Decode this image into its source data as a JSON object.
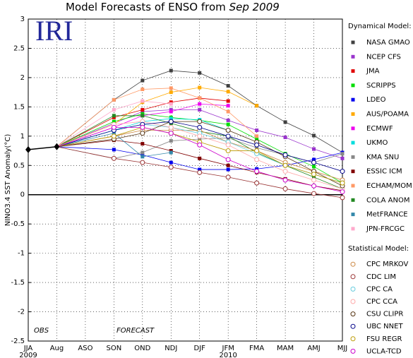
{
  "chart_data": {
    "type": "line",
    "title": "Model Forecasts of ENSO from",
    "title_date": "Sep 2009",
    "logo": "IRI",
    "ylabel": "NINO3.4 SST Anomaly(°C)",
    "annotations": [
      "OBS",
      "FORECAST"
    ],
    "categories": [
      "JJA",
      "Aug",
      "ASO",
      "SON",
      "OND",
      "NDJ",
      "DJF",
      "JFM",
      "FMA",
      "MAM",
      "AMJ",
      "MJJ"
    ],
    "x_sublabels": [
      "2009",
      null,
      null,
      null,
      null,
      null,
      null,
      "2010",
      null,
      null,
      null,
      null
    ],
    "ylim": [
      -2.5,
      3
    ],
    "yticks": [
      -2.5,
      -2,
      -1.5,
      -1,
      -0.5,
      0,
      0.5,
      1,
      1.5,
      2,
      2.5,
      3
    ],
    "grid": true,
    "observed": {
      "color": "#000000",
      "values": [
        0.77,
        0.82,
        null,
        null,
        null,
        null,
        null,
        null,
        null,
        null,
        null,
        null
      ]
    },
    "series_groups": [
      {
        "label": "Dynamical Model:",
        "marker": "square",
        "series": [
          {
            "name": "NASA GMAO",
            "color": "#404040",
            "values": [
              null,
              0.82,
              null,
              1.62,
              1.95,
              2.12,
              2.08,
              1.86,
              1.52,
              1.24,
              1.01,
              0.72
            ]
          },
          {
            "name": "NCEP CFS",
            "color": "#9933cc",
            "values": [
              null,
              0.82,
              null,
              1.22,
              1.42,
              1.45,
              1.45,
              1.27,
              1.1,
              0.98,
              0.78,
              0.62
            ]
          },
          {
            "name": "JMA",
            "color": "#e00000",
            "values": [
              null,
              0.82,
              null,
              1.32,
              1.45,
              1.58,
              1.65,
              1.6,
              null,
              null,
              null,
              null
            ]
          },
          {
            "name": "SCRIPPS",
            "color": "#00dd00",
            "values": [
              null,
              0.82,
              null,
              1.25,
              1.38,
              1.32,
              1.27,
              1.2,
              0.95,
              0.7,
              0.48,
              0.2
            ]
          },
          {
            "name": "LDEO",
            "color": "#0000ee",
            "values": [
              null,
              0.82,
              null,
              0.77,
              0.68,
              0.55,
              0.43,
              0.43,
              0.44,
              0.5,
              0.6,
              0.72
            ]
          },
          {
            "name": "AUS/POAMA",
            "color": "#ffaa00",
            "values": [
              null,
              0.82,
              null,
              1.2,
              1.58,
              1.75,
              1.83,
              1.76,
              1.52,
              null,
              null,
              null
            ]
          },
          {
            "name": "ECMWF",
            "color": "#ee00ee",
            "values": [
              null,
              0.82,
              null,
              1.15,
              1.35,
              1.42,
              1.55,
              1.52,
              null,
              null,
              null,
              null
            ]
          },
          {
            "name": "UKMO",
            "color": "#00dddd",
            "values": [
              null,
              0.82,
              null,
              1.1,
              1.25,
              1.3,
              1.28,
              1.1,
              null,
              null,
              null,
              null
            ]
          },
          {
            "name": "KMA SNU",
            "color": "#888888",
            "values": [
              null,
              0.82,
              null,
              0.62,
              0.72,
              0.92,
              0.95,
              0.97,
              0.8,
              0.68,
              0.55,
              0.7
            ]
          },
          {
            "name": "ESSIC ICM",
            "color": "#800000",
            "values": [
              null,
              0.82,
              null,
              0.93,
              0.87,
              0.75,
              0.62,
              0.5,
              0.38,
              0.27,
              0.15,
              0.07
            ]
          },
          {
            "name": "ECHAM/MOM",
            "color": "#ff9966",
            "values": [
              null,
              0.82,
              null,
              1.62,
              1.8,
              1.82,
              1.65,
              1.42,
              1.0,
              null,
              null,
              null
            ]
          },
          {
            "name": "COLA ANOM",
            "color": "#228822",
            "values": [
              null,
              0.82,
              null,
              1.35,
              1.35,
              1.22,
              1.08,
              1.0,
              0.72,
              0.5,
              0.3,
              0.1
            ]
          },
          {
            "name": "MetFRANCE",
            "color": "#3388aa",
            "values": [
              null,
              0.82,
              null,
              1.05,
              0.65,
              0.72,
              null,
              null,
              null,
              null,
              null,
              null
            ]
          },
          {
            "name": "JPN-FRCGC",
            "color": "#ffaacc",
            "values": [
              null,
              0.82,
              null,
              1.45,
              1.6,
              1.55,
              null,
              null,
              null,
              null,
              null,
              null
            ]
          }
        ]
      },
      {
        "label": "Statistical Model:",
        "marker": "circle",
        "series": [
          {
            "name": "CPC MRKOV",
            "color": "#cc8844",
            "values": [
              null,
              0.82,
              null,
              1.0,
              1.1,
              1.1,
              1.1,
              0.9,
              0.75,
              0.55,
              0.4,
              0.25
            ]
          },
          {
            "name": "CDC LIM",
            "color": "#993333",
            "values": [
              null,
              0.82,
              null,
              0.62,
              0.55,
              0.47,
              0.38,
              0.3,
              0.2,
              0.1,
              0.02,
              -0.05
            ]
          },
          {
            "name": "CPC CA",
            "color": "#66ccdd",
            "values": [
              null,
              0.82,
              null,
              1.1,
              1.2,
              1.15,
              1.05,
              0.9,
              0.7,
              0.5,
              0.35,
              0.2
            ]
          },
          {
            "name": "CPC CCA",
            "color": "#ffaaaa",
            "values": [
              null,
              0.82,
              null,
              1.2,
              1.25,
              1.15,
              1.0,
              0.85,
              0.6,
              0.4,
              0.25,
              0.1
            ]
          },
          {
            "name": "CSU CLIPR",
            "color": "#553311",
            "values": [
              null,
              0.82,
              null,
              0.95,
              1.05,
              1.25,
              1.25,
              1.1,
              0.9,
              0.65,
              0.4,
              0.15
            ]
          },
          {
            "name": "UBC NNET",
            "color": "#000088",
            "values": [
              null,
              0.82,
              null,
              1.1,
              1.2,
              1.25,
              1.15,
              1.0,
              0.85,
              0.68,
              0.55,
              0.4
            ]
          },
          {
            "name": "FSU REGR",
            "color": "#bb9900",
            "values": [
              null,
              0.82,
              null,
              1.0,
              1.15,
              1.05,
              0.9,
              0.75,
              0.75,
              0.5,
              0.35,
              0.2
            ]
          },
          {
            "name": "UCLA-TCD",
            "color": "#cc00cc",
            "values": [
              null,
              0.82,
              null,
              1.15,
              1.15,
              1.05,
              0.85,
              0.6,
              0.4,
              0.25,
              0.15,
              0.05
            ]
          }
        ]
      }
    ]
  }
}
